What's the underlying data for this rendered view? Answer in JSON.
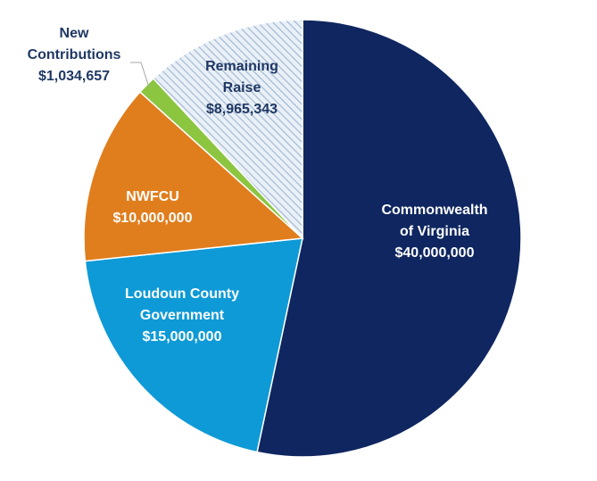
{
  "chart_data": {
    "type": "pie",
    "title": "",
    "start_angle_deg": 0,
    "direction": "clockwise",
    "slices": [
      {
        "name": "Commonwealth of Virginia",
        "value": 40000000,
        "label_lines": [
          "Commonwealth",
          "of Virginia",
          "$40,000,000"
        ],
        "color": "#0f2660",
        "pattern": "solid",
        "label_color": "#ffffff",
        "label_position": "inside"
      },
      {
        "name": "Loudoun County Government",
        "value": 15000000,
        "label_lines": [
          "Loudoun County",
          "Government",
          "$15,000,000"
        ],
        "color": "#0e9ad7",
        "pattern": "solid",
        "label_color": "#ffffff",
        "label_position": "inside"
      },
      {
        "name": "NWFCU",
        "value": 10000000,
        "label_lines": [
          "NWFCU",
          "$10,000,000"
        ],
        "color": "#e07e1d",
        "pattern": "solid",
        "label_color": "#ffffff",
        "label_position": "inside"
      },
      {
        "name": "New Contributions",
        "value": 1034657,
        "label_lines": [
          "New",
          "Contributions",
          "$1,034,657"
        ],
        "color": "#8cc540",
        "pattern": "solid",
        "label_color": "#1f3864",
        "label_position": "outside-with-leader"
      },
      {
        "name": "Remaining Raise",
        "value": 8965343,
        "label_lines": [
          "Remaining",
          "Raise",
          "$8,965,343"
        ],
        "color": "#d5e1ef",
        "pattern": "diagonal-hatch",
        "label_color": "#1f3864",
        "label_position": "inside"
      }
    ]
  }
}
